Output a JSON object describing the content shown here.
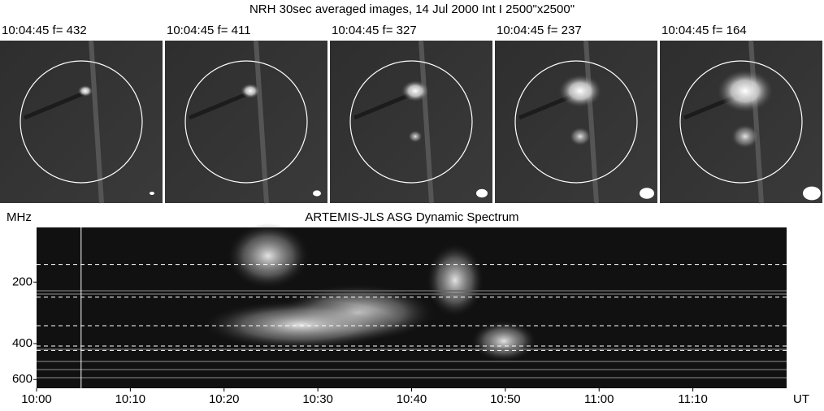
{
  "header": {
    "title": "NRH 30sec averaged images, 14 Jul 2000 Int I 2500\"x2500\""
  },
  "panels": [
    {
      "time": "10:04:45",
      "freq_label": "f=",
      "freq": 432
    },
    {
      "time": "10:04:45",
      "freq_label": "f=",
      "freq": 411
    },
    {
      "time": "10:04:45",
      "freq_label": "f=",
      "freq": 327
    },
    {
      "time": "10:04:45",
      "freq_label": "f=",
      "freq": 237
    },
    {
      "time": "10:04:45",
      "freq_label": "f=",
      "freq": 164
    }
  ],
  "chart_data": {
    "type": "spectrogram",
    "title": "ARTEMIS-JLS ASG Dynamic Spectrum",
    "y_label": "MHz",
    "x_label": "UT",
    "log_y": true,
    "ylim": [
      108,
      662
    ],
    "yticks": [
      200,
      400,
      600
    ],
    "xlim": [
      "10:00",
      "11:20"
    ],
    "xticks": [
      "10:00",
      "10:10",
      "10:20",
      "10:30",
      "10:40",
      "10:50",
      "11:00",
      "11:10"
    ]
  }
}
